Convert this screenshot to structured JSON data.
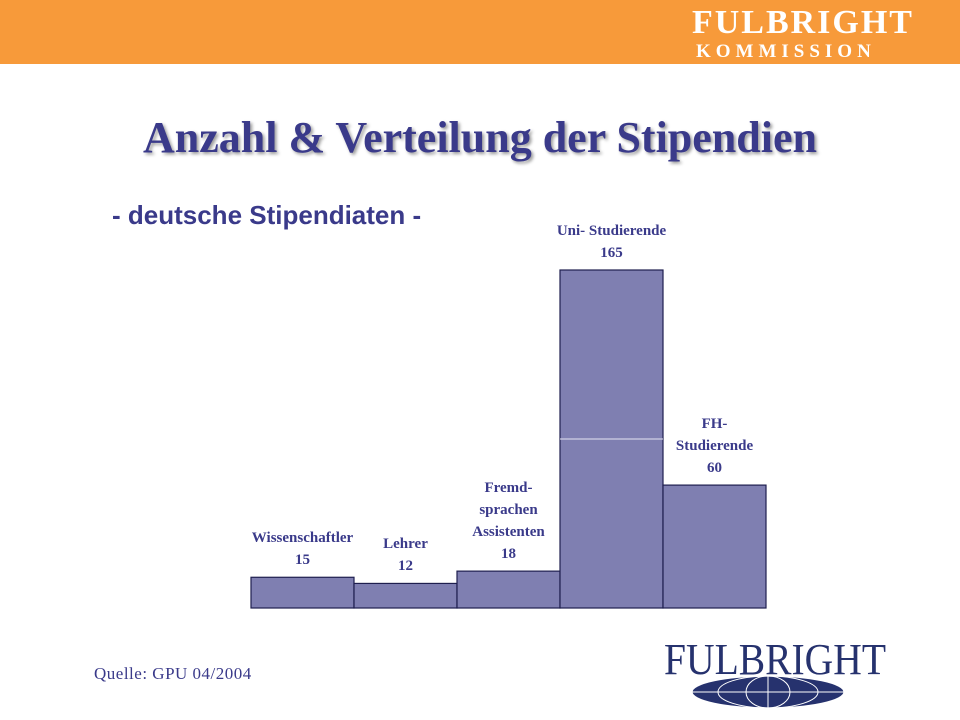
{
  "header": {
    "band_color": "#f79a3a",
    "logo_line1": "FULBRIGHT",
    "logo_line2": "KOMMISSION"
  },
  "title": "Anzahl & Verteilung der Stipendien",
  "subtitle": "- deutsche Stipendiaten -",
  "source": "Quelle: GPU 04/2004",
  "footer_logo": {
    "text": "FULBRIGHT"
  },
  "colors": {
    "bar_fill": "#7f7fb1",
    "bar_stroke": "#1f1f4f",
    "text": "#3a3a8a"
  },
  "chart_data": {
    "type": "bar",
    "categories": [
      [
        "Wissenschaftler"
      ],
      [
        "Lehrer"
      ],
      [
        "Fremd-",
        "sprachen",
        "Assistenten"
      ],
      [
        "Uni- Studierende"
      ],
      [
        "FH-",
        "Studierende"
      ]
    ],
    "values": [
      15,
      12,
      18,
      165,
      60
    ],
    "title": "Anzahl & Verteilung der Stipendien",
    "xlabel": "",
    "ylabel": "",
    "ylim": [
      0,
      165
    ],
    "grid": false,
    "legend": "none"
  }
}
